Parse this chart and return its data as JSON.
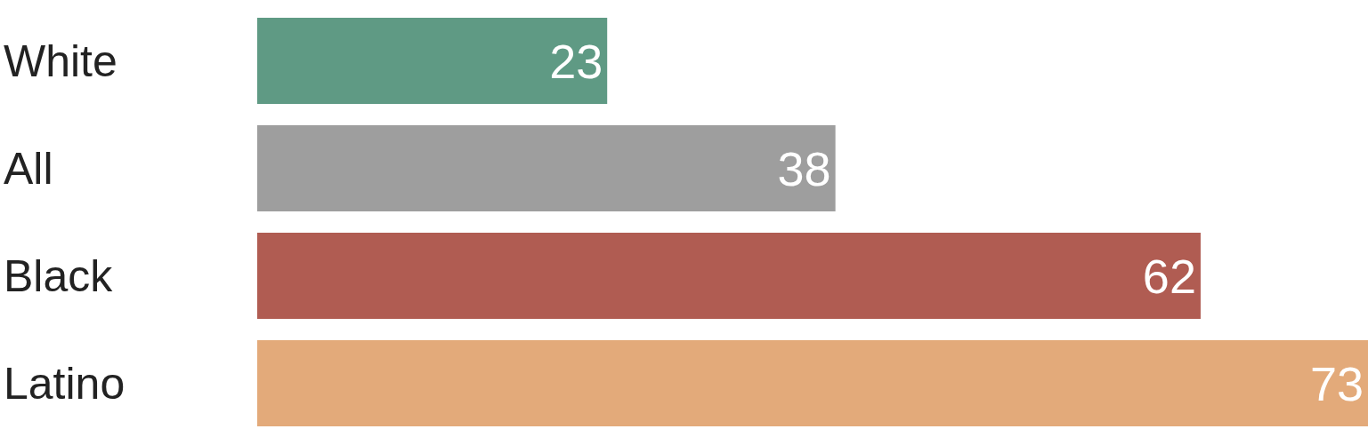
{
  "chart_data": {
    "type": "bar",
    "orientation": "horizontal",
    "categories": [
      "White",
      "All",
      "Black",
      "Latino"
    ],
    "values": [
      23,
      38,
      62,
      73
    ],
    "colors": [
      "#5f9a84",
      "#9e9e9e",
      "#b05c52",
      "#e3aa7a"
    ],
    "data_labels": true
  }
}
